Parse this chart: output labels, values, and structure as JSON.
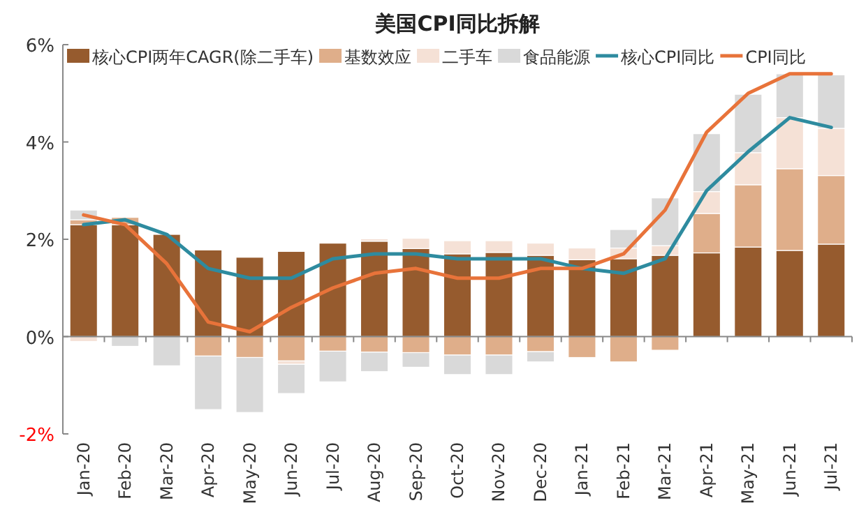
{
  "chart_data": {
    "type": "bar",
    "title": "美国CPI同比拆解",
    "stacked": true,
    "categories": [
      "Jan-20",
      "Feb-20",
      "Mar-20",
      "Apr-20",
      "May-20",
      "Jun-20",
      "Jul-20",
      "Aug-20",
      "Sep-20",
      "Oct-20",
      "Nov-20",
      "Dec-20",
      "Jan-21",
      "Feb-21",
      "Mar-21",
      "Apr-21",
      "May-21",
      "Jun-21",
      "Jul-21"
    ],
    "series": [
      {
        "name": "核心CPI两年CAGR(除二手车)",
        "color": "#965b2e",
        "values": [
          2.3,
          2.3,
          2.1,
          1.78,
          1.63,
          1.75,
          1.92,
          1.96,
          1.81,
          1.7,
          1.73,
          1.67,
          1.58,
          1.6,
          1.67,
          1.72,
          1.84,
          1.77,
          1.9
        ]
      },
      {
        "name": "基数效应",
        "color": "#dfae8a",
        "values": [
          0.1,
          0.15,
          0,
          -0.4,
          -0.43,
          -0.5,
          -0.3,
          -0.32,
          -0.33,
          -0.38,
          -0.38,
          -0.31,
          -0.43,
          -0.52,
          -0.28,
          0.81,
          1.28,
          1.68,
          1.41
        ]
      },
      {
        "name": "二手车",
        "color": "#f5e1d6",
        "values": [
          -0.1,
          0,
          0,
          0,
          0,
          -0.07,
          0,
          0.05,
          0.21,
          0.27,
          0.24,
          0.25,
          0.24,
          0.22,
          0.2,
          0.45,
          0.66,
          1.05,
          0.97
        ]
      },
      {
        "name": "食品能源",
        "color": "#d9d9d9",
        "values": [
          0.2,
          -0.2,
          -0.6,
          -1.1,
          -1.13,
          -0.6,
          -0.63,
          -0.4,
          -0.3,
          -0.4,
          -0.4,
          -0.21,
          0,
          0.38,
          0.98,
          1.19,
          1.2,
          0.9,
          1.1
        ]
      },
      {
        "name": "核心CPI同比",
        "type": "line",
        "color": "#2e8b9f",
        "values": [
          2.3,
          2.4,
          2.1,
          1.4,
          1.2,
          1.2,
          1.6,
          1.7,
          1.7,
          1.6,
          1.6,
          1.6,
          1.4,
          1.3,
          1.6,
          3.0,
          3.8,
          4.5,
          4.3
        ]
      },
      {
        "name": "CPI同比",
        "type": "line",
        "color": "#e8733a",
        "values": [
          2.5,
          2.3,
          1.5,
          0.3,
          0.1,
          0.6,
          1.0,
          1.3,
          1.4,
          1.2,
          1.2,
          1.4,
          1.4,
          1.7,
          2.6,
          4.2,
          5.0,
          5.4,
          5.4
        ]
      }
    ],
    "ylim": [
      -2,
      6
    ],
    "yticks": [
      {
        "value": -2,
        "label": "-2%"
      },
      {
        "value": 0,
        "label": "0%"
      },
      {
        "value": 2,
        "label": "2%"
      },
      {
        "value": 4,
        "label": "4%"
      },
      {
        "value": 6,
        "label": "6%"
      }
    ],
    "legend": "top"
  }
}
